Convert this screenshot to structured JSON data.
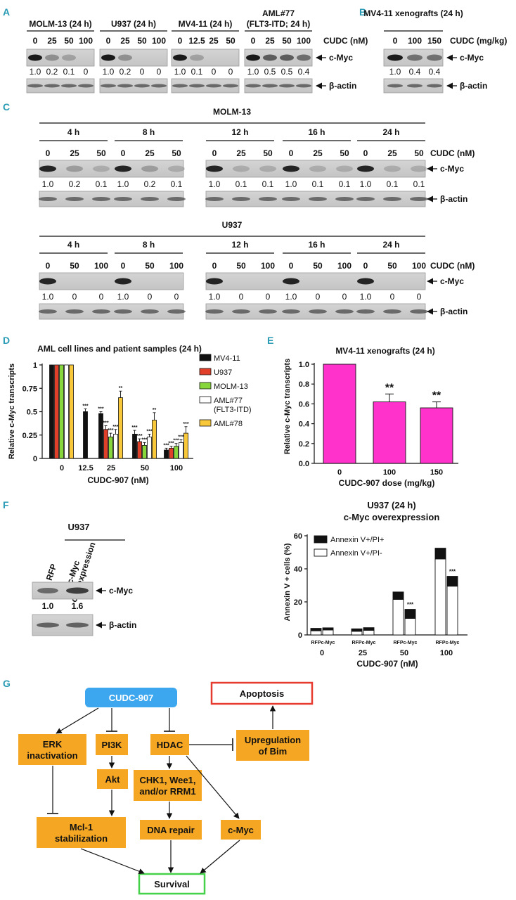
{
  "panels": {
    "A": "A",
    "B": "B",
    "C": "C",
    "D": "D",
    "E": "E",
    "F": "F",
    "G": "G"
  },
  "colors": {
    "panel_letter": "#2a9bb5",
    "magenta": "#ff33cc",
    "black": "#111111",
    "red": "#e0402a",
    "green": "#86d63c",
    "white": "#ffffff",
    "yellow": "#f8c83a",
    "orange": "#f5a623",
    "cudc": "#3ca6ee",
    "apoptosis_border": "#e63b2e",
    "survival_border": "#45d24a"
  },
  "blot_labels": {
    "cmyc": "c-Myc",
    "actin": "β-actin"
  },
  "panel_a": {
    "groups": [
      {
        "title": "MOLM-13 (24 h)",
        "doses": [
          "0",
          "25",
          "50",
          "100"
        ],
        "values": [
          "1.0",
          "0.2",
          "0.1",
          "0"
        ]
      },
      {
        "title": "U937 (24 h)",
        "doses": [
          "0",
          "25",
          "50",
          "100"
        ],
        "values": [
          "1.0",
          "0.2",
          "0",
          "0"
        ]
      },
      {
        "title": "MV4-11 (24 h)",
        "doses": [
          "0",
          "12.5",
          "25",
          "50"
        ],
        "values": [
          "1.0",
          "0.1",
          "0",
          "0"
        ]
      },
      {
        "title1": "AML#77",
        "title2": "(FLT3-ITD; 24 h)",
        "doses": [
          "0",
          "25",
          "50",
          "100"
        ],
        "values": [
          "1.0",
          "0.5",
          "0.5",
          "0.4"
        ]
      }
    ],
    "unit": "CUDC (nM)"
  },
  "panel_b": {
    "title": "MV4-11 xenografts (24 h)",
    "doses": [
      "0",
      "100",
      "150"
    ],
    "values": [
      "1.0",
      "0.4",
      "0.4"
    ],
    "unit": "CUDC (mg/kg)"
  },
  "panel_c": {
    "unit": "CUDC (nM)",
    "blocks": [
      {
        "title": "MOLM-13",
        "times": [
          "4 h",
          "8 h",
          "12 h",
          "16 h",
          "24 h"
        ],
        "doses": [
          "0",
          "25",
          "50"
        ],
        "values": [
          [
            "1.0",
            "0.2",
            "0.1"
          ],
          [
            "1.0",
            "0.2",
            "0.1"
          ],
          [
            "1.0",
            "0.1",
            "0.1"
          ],
          [
            "1.0",
            "0.1",
            "0.1"
          ],
          [
            "1.0",
            "0.1",
            "0.1"
          ]
        ]
      },
      {
        "title": "U937",
        "times": [
          "4 h",
          "8 h",
          "12 h",
          "16 h",
          "24 h"
        ],
        "doses": [
          "0",
          "50",
          "100"
        ],
        "values": [
          [
            "1.0",
            "0",
            "0"
          ],
          [
            "1.0",
            "0",
            "0"
          ],
          [
            "1.0",
            "0",
            "0"
          ],
          [
            "1.0",
            "0",
            "0"
          ],
          [
            "1.0",
            "0",
            "0"
          ]
        ]
      }
    ]
  },
  "chart_data": [
    {
      "type": "bar",
      "title": "AML cell lines and patient samples (24 h)",
      "xlabel": "CUDC-907 (nM)",
      "ylabel": "Relative c-Myc transcripts",
      "categories": [
        "0",
        "12.5",
        "25",
        "50",
        "100"
      ],
      "ylim": [
        0,
        1.0
      ],
      "yticks": [
        "0",
        "0.25",
        "0.5",
        "0.75",
        "1"
      ],
      "legend_position": "right",
      "series": [
        {
          "name": "MV4-11",
          "color": "#111111",
          "values": [
            1.0,
            0.5,
            0.48,
            0.26,
            0.09
          ],
          "errors": [
            0,
            0.03,
            0.02,
            0.04,
            0.02
          ],
          "sig": [
            "",
            "***",
            "***",
            "***",
            "***"
          ]
        },
        {
          "name": "U937",
          "color": "#e0402a",
          "values": [
            1.0,
            null,
            0.31,
            0.18,
            0.11
          ],
          "errors": [
            0,
            0,
            0.04,
            0.03,
            0.02
          ],
          "sig": [
            "",
            "",
            "***",
            "***",
            "***"
          ]
        },
        {
          "name": "MOLM-13",
          "color": "#86d63c",
          "values": [
            1.0,
            null,
            0.23,
            0.14,
            0.13
          ],
          "errors": [
            0,
            0,
            0.04,
            0.03,
            0.03
          ],
          "sig": [
            "",
            "",
            "***",
            "***",
            "***"
          ]
        },
        {
          "name": "AML#77 (FLT3-ITD)",
          "legend_lines": [
            "AML#77",
            "(FLT3-ITD)"
          ],
          "color": "#ffffff",
          "values": [
            1.0,
            null,
            0.26,
            0.23,
            0.17
          ],
          "errors": [
            0,
            0,
            0.05,
            0.03,
            0.03
          ],
          "sig": [
            "",
            "",
            "***",
            "***",
            "***"
          ]
        },
        {
          "name": "AML#78",
          "color": "#f8c83a",
          "values": [
            1.0,
            null,
            0.65,
            0.41,
            0.27
          ],
          "errors": [
            0,
            0,
            0.07,
            0.08,
            0.07
          ],
          "sig": [
            "",
            "",
            "**",
            "**",
            "***"
          ]
        }
      ]
    },
    {
      "type": "bar",
      "title": "MV4-11 xenografts (24 h)",
      "xlabel": "CUDC-907 dose (mg/kg)",
      "ylabel": "Relative c-Myc transcripts",
      "categories": [
        "0",
        "100",
        "150"
      ],
      "ylim": [
        0,
        1.0
      ],
      "yticks": [
        "0.0",
        "0.2",
        "0.4",
        "0.6",
        "0.8",
        "1.0"
      ],
      "series": [
        {
          "name": "",
          "color": "#ff33cc",
          "values": [
            1.0,
            0.62,
            0.56
          ],
          "errors": [
            0,
            0.08,
            0.06
          ],
          "sig": [
            "",
            "**",
            "**"
          ]
        }
      ]
    },
    {
      "type": "bar",
      "stacked": true,
      "title": "U937 (24 h)",
      "subtitle": "c-Myc overexpression",
      "xlabel": "CUDC-907 (nM)",
      "ylabel": "Annexin V + cells (%)",
      "ylim": [
        0,
        60
      ],
      "yticks": [
        "0",
        "20",
        "40",
        "60"
      ],
      "legend_position": "top-left",
      "groups": [
        "0",
        "25",
        "50",
        "100"
      ],
      "bar_labels": [
        "RFP",
        "c-Myc"
      ],
      "series": [
        {
          "name": "Annexin V+/PI-",
          "color": "#ffffff",
          "values": [
            [
              2.5,
              3.0
            ],
            [
              2.2,
              2.8
            ],
            [
              21.5,
              10.0
            ],
            [
              46.0,
              29.5
            ]
          ]
        },
        {
          "name": "Annexin V+/PI+",
          "color": "#111111",
          "values": [
            [
              1.5,
              1.3
            ],
            [
              1.5,
              1.6
            ],
            [
              4.5,
              5.5
            ],
            [
              6.5,
              6.0
            ]
          ]
        }
      ],
      "sig": [
        [
          "",
          ""
        ],
        [
          "",
          ""
        ],
        [
          "",
          "***"
        ],
        [
          "",
          "***"
        ]
      ]
    }
  ],
  "panel_f_blot": {
    "cell": "U937",
    "lanes": [
      "RFP",
      "c-Myc overexpression"
    ],
    "lane2_lines": [
      "c-Myc",
      "overexpression"
    ],
    "values": [
      "1.0",
      "1.6"
    ]
  },
  "panel_g": {
    "nodes": {
      "cudc": "CUDC-907",
      "apoptosis": "Apoptosis",
      "erk": [
        "ERK",
        "inactivation"
      ],
      "pi3k": "PI3K",
      "hdac": "HDAC",
      "bim": [
        "Upregulation",
        "of Bim"
      ],
      "akt": "Akt",
      "chk": [
        "CHK1, Wee1,",
        "and/or RRM1"
      ],
      "mcl": [
        "Mcl-1",
        "stabilization"
      ],
      "dna": "DNA repair",
      "cmyc": "c-Myc",
      "survival": "Survival"
    }
  }
}
